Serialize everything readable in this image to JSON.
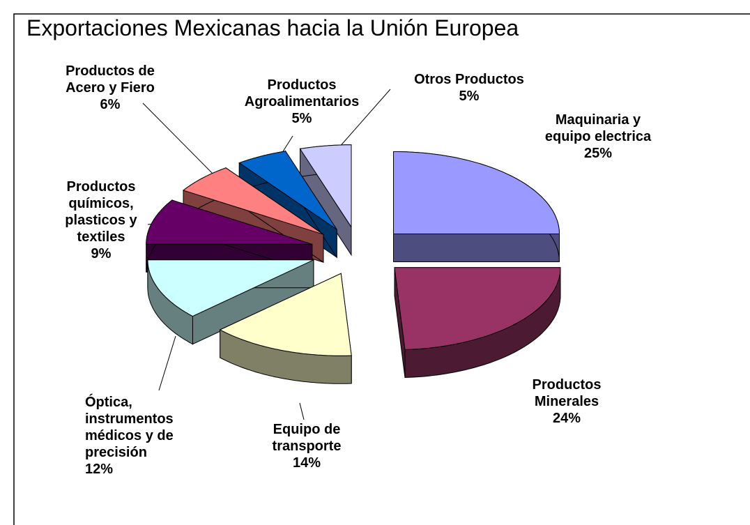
{
  "chart_data": {
    "type": "pie3d",
    "title": "Exportaciones Mexicanas hacia la Unión Europea",
    "categories": [
      "Maquinaria y equipo electrica",
      "Productos Minerales",
      "Equipo de transporte",
      "Óptica, instrumentos médicos y de precisión",
      "Productos químicos, plasticos y textiles",
      "Productos de Acero y Fiero",
      "Productos Agroalimentarios",
      "Otros Productos"
    ],
    "values": [
      25,
      24,
      14,
      12,
      9,
      6,
      5,
      5
    ],
    "value_labels": [
      "25%",
      "24%",
      "14%",
      "12%",
      "9%",
      "6%",
      "5%",
      "5%"
    ],
    "colors": [
      "#9999ff",
      "#993366",
      "#ffffcc",
      "#ccffff",
      "#660066",
      "#ff8080",
      "#0066cc",
      "#ccccff"
    ]
  }
}
